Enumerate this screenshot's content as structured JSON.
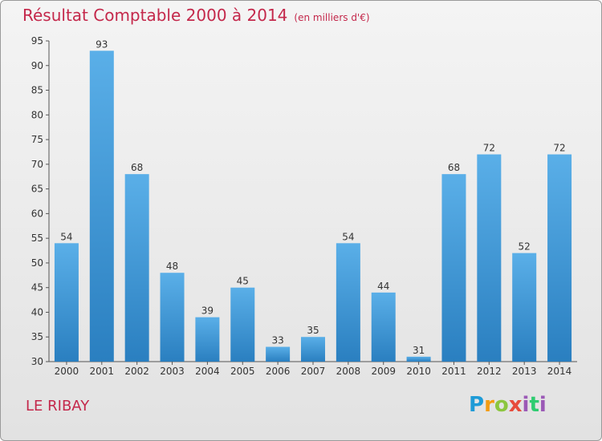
{
  "header": {
    "title": "Résultat Comptable 2000 à 2014",
    "subtitle": "(en milliers d'€)"
  },
  "footer": {
    "commune": "LE RIBAY",
    "logo_text": "Proxiti"
  },
  "colors": {
    "title": "#c4284b",
    "bar_top": "#5aafe8",
    "bar_bottom": "#2a7fc0"
  },
  "chart_data": {
    "type": "bar",
    "title": "Résultat Comptable 2000 à 2014",
    "subtitle": "(en milliers d'€)",
    "categories": [
      "2000",
      "2001",
      "2002",
      "2003",
      "2004",
      "2005",
      "2006",
      "2007",
      "2008",
      "2009",
      "2010",
      "2011",
      "2012",
      "2013",
      "2014"
    ],
    "values": [
      54,
      93,
      68,
      48,
      39,
      45,
      33,
      35,
      54,
      44,
      31,
      68,
      72,
      52,
      72
    ],
    "ylim": [
      30,
      95
    ],
    "yticks": [
      30,
      35,
      40,
      45,
      50,
      55,
      60,
      65,
      70,
      75,
      80,
      85,
      90,
      95
    ],
    "xlabel": "",
    "ylabel": "",
    "grid": false,
    "legend": "none"
  }
}
